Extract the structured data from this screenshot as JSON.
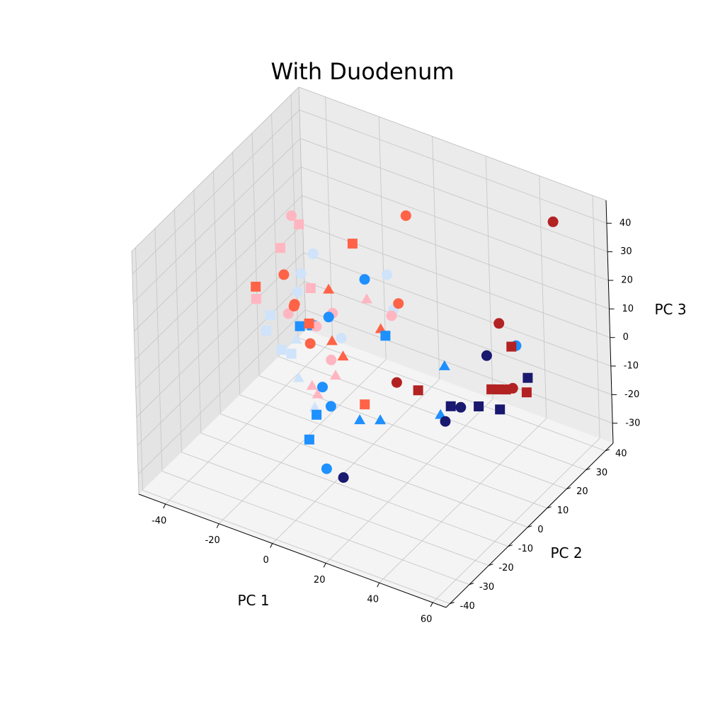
{
  "chart_data": {
    "type": "scatter",
    "projection": "3d",
    "title": "With Duodenum",
    "xlabel": "PC 1",
    "ylabel": "PC 2",
    "zlabel": "PC 3",
    "xlim": [
      -50,
      65
    ],
    "ylim": [
      -42,
      44
    ],
    "zlim": [
      -37,
      48
    ],
    "x_ticks": [
      -40,
      -20,
      0,
      20,
      40,
      60
    ],
    "y_ticks": [
      -40,
      -30,
      -20,
      -10,
      0,
      10,
      20,
      30,
      40
    ],
    "z_ticks": [
      -30,
      -20,
      -10,
      0,
      10,
      20,
      30,
      40
    ],
    "grid": true,
    "colors": {
      "pane_back": "#ebebeb",
      "pane_side": "#e4e4e4",
      "pane_floor": "#f4f4f4",
      "grid": "#c8c8c8",
      "edge": "#999999"
    },
    "marker_colors": {
      "navy": "#191970",
      "dodgerblue": "#1e90ff",
      "lightblue": "#cfe3fa",
      "firebrick": "#b22222",
      "tomato": "#ff6347",
      "pink": "#ffb6c1"
    },
    "points": [
      {
        "x": 5.5,
        "y": -21,
        "z": -23,
        "marker": "o",
        "color": "dodgerblue"
      },
      {
        "x": 12.5,
        "y": -22,
        "z": -23,
        "marker": "o",
        "color": "navy"
      },
      {
        "x": -18,
        "y": 5,
        "z": -27,
        "marker": "^",
        "color": "lightblue"
      },
      {
        "x": 32,
        "y": 4,
        "z": -14,
        "marker": "o",
        "color": "navy"
      },
      {
        "x": 35,
        "y": 3,
        "z": -7,
        "marker": "s",
        "color": "navy"
      },
      {
        "x": 38,
        "y": 4,
        "z": -7,
        "marker": "o",
        "color": "navy"
      },
      {
        "x": 41,
        "y": 9,
        "z": -9,
        "marker": "s",
        "color": "navy"
      },
      {
        "x": 46,
        "y": 13,
        "z": -11,
        "marker": "s",
        "color": "navy"
      },
      {
        "x": 44,
        "y": 30,
        "z": -12,
        "marker": "s",
        "color": "navy"
      },
      {
        "x": 48,
        "y": 17,
        "z": 9,
        "marker": "s",
        "color": "firebrick"
      },
      {
        "x": 49,
        "y": 18,
        "z": 9,
        "marker": "o",
        "color": "dodgerblue"
      },
      {
        "x": 34,
        "y": 23,
        "z": -3,
        "marker": "o",
        "color": "navy"
      },
      {
        "x": 42,
        "y": 25,
        "z": -13,
        "marker": "o",
        "color": "firebrick"
      },
      {
        "x": 39,
        "y": 23,
        "z": 10,
        "marker": "o",
        "color": "firebrick"
      },
      {
        "x": 43,
        "y": 13,
        "z": -5,
        "marker": "s",
        "color": "firebrick"
      },
      {
        "x": 45,
        "y": 14,
        "z": -5,
        "marker": "s",
        "color": "firebrick"
      },
      {
        "x": 47,
        "y": 15,
        "z": -5,
        "marker": "s",
        "color": "firebrick"
      },
      {
        "x": 51,
        "y": 20,
        "z": -8,
        "marker": "s",
        "color": "firebrick"
      },
      {
        "x": 50,
        "y": 37,
        "z": 40,
        "marker": "o",
        "color": "firebrick"
      },
      {
        "x": 8,
        "y": 12,
        "z": -14,
        "marker": "o",
        "color": "firebrick"
      },
      {
        "x": 16,
        "y": 12,
        "z": -14,
        "marker": "s",
        "color": "firebrick"
      },
      {
        "x": 14,
        "y": -15,
        "z": -7,
        "marker": "^",
        "color": "dodgerblue"
      },
      {
        "x": 18,
        "y": -10,
        "z": -9,
        "marker": "^",
        "color": "dodgerblue"
      },
      {
        "x": 28,
        "y": 7,
        "z": -15,
        "marker": "^",
        "color": "dodgerblue"
      },
      {
        "x": 27,
        "y": 11,
        "z": -1,
        "marker": "^",
        "color": "dodgerblue"
      },
      {
        "x": -2,
        "y": -12,
        "z": -3,
        "marker": "o",
        "color": "dodgerblue"
      },
      {
        "x": 0,
        "y": -18,
        "z": -8,
        "marker": "s",
        "color": "dodgerblue"
      },
      {
        "x": 0,
        "y": -22,
        "z": -14,
        "marker": "s",
        "color": "dodgerblue"
      },
      {
        "x": 4,
        "y": -16,
        "z": -5,
        "marker": "o",
        "color": "dodgerblue"
      },
      {
        "x": -14,
        "y": 8,
        "z": 4,
        "marker": "o",
        "color": "dodgerblue"
      },
      {
        "x": -22,
        "y": 10,
        "z": -3,
        "marker": "s",
        "color": "dodgerblue"
      },
      {
        "x": -25,
        "y": 8,
        "z": -3,
        "marker": "s",
        "color": "dodgerblue"
      },
      {
        "x": 0,
        "y": 8,
        "z": 22,
        "marker": "o",
        "color": "dodgerblue"
      },
      {
        "x": 5,
        "y": 11,
        "z": 2,
        "marker": "s",
        "color": "dodgerblue"
      },
      {
        "x": -30,
        "y": 5,
        "z": -11,
        "marker": "s",
        "color": "lightblue"
      },
      {
        "x": -27,
        "y": 6,
        "z": -12,
        "marker": "s",
        "color": "lightblue"
      },
      {
        "x": -36,
        "y": 8,
        "z": -3,
        "marker": "s",
        "color": "lightblue"
      },
      {
        "x": -37,
        "y": 7,
        "z": -8,
        "marker": "s",
        "color": "lightblue"
      },
      {
        "x": -28,
        "y": 10,
        "z": -10,
        "marker": "^",
        "color": "lightblue"
      },
      {
        "x": -20,
        "y": 0,
        "z": -14,
        "marker": "^",
        "color": "lightblue"
      },
      {
        "x": -8,
        "y": 6,
        "z": 0,
        "marker": "o",
        "color": "lightblue"
      },
      {
        "x": 0,
        "y": 22,
        "z": 2,
        "marker": "o",
        "color": "lightblue"
      },
      {
        "x": 4,
        "y": 14,
        "z": 21,
        "marker": "o",
        "color": "lightblue"
      },
      {
        "x": -26,
        "y": 17,
        "z": 16,
        "marker": "o",
        "color": "lightblue"
      },
      {
        "x": -27,
        "y": 12,
        "z": 12,
        "marker": "o",
        "color": "lightblue"
      },
      {
        "x": -27,
        "y": 10,
        "z": 7,
        "marker": "o",
        "color": "lightblue"
      },
      {
        "x": -42,
        "y": 9,
        "z": 0,
        "marker": "s",
        "color": "pink"
      },
      {
        "x": -30,
        "y": 6,
        "z": 24,
        "marker": "s",
        "color": "pink"
      },
      {
        "x": -25,
        "y": 9,
        "z": 32,
        "marker": "s",
        "color": "pink"
      },
      {
        "x": -27,
        "y": 8,
        "z": 35,
        "marker": "o",
        "color": "pink"
      },
      {
        "x": -22,
        "y": 10,
        "z": 10,
        "marker": "s",
        "color": "pink"
      },
      {
        "x": -30,
        "y": 9,
        "z": -1,
        "marker": "o",
        "color": "pink"
      },
      {
        "x": -18,
        "y": 7,
        "z": 0,
        "marker": "o",
        "color": "pink"
      },
      {
        "x": -12,
        "y": 6,
        "z": -9,
        "marker": "o",
        "color": "pink"
      },
      {
        "x": -14,
        "y": 10,
        "z": 4,
        "marker": "o",
        "color": "pink"
      },
      {
        "x": -7,
        "y": 18,
        "z": 6,
        "marker": "^",
        "color": "pink"
      },
      {
        "x": 6,
        "y": 13,
        "z": 8,
        "marker": "o",
        "color": "pink"
      },
      {
        "x": -15,
        "y": 0,
        "z": -15,
        "marker": "^",
        "color": "pink"
      },
      {
        "x": -16,
        "y": 4,
        "z": -21,
        "marker": "^",
        "color": "pink"
      },
      {
        "x": -9,
        "y": 4,
        "z": -12,
        "marker": "^",
        "color": "pink"
      },
      {
        "x": -39,
        "y": 5,
        "z": 8,
        "marker": "s",
        "color": "tomato"
      },
      {
        "x": -29,
        "y": 6,
        "z": 15,
        "marker": "o",
        "color": "tomato"
      },
      {
        "x": -26,
        "y": 7,
        "z": 5,
        "marker": "o",
        "color": "tomato"
      },
      {
        "x": -24,
        "y": 4,
        "z": 7,
        "marker": "o",
        "color": "tomato"
      },
      {
        "x": -20,
        "y": 6,
        "z": 1,
        "marker": "s",
        "color": "tomato"
      },
      {
        "x": -19,
        "y": 5,
        "z": -5,
        "marker": "o",
        "color": "tomato"
      },
      {
        "x": -16,
        "y": 11,
        "z": 11,
        "marker": "^",
        "color": "tomato"
      },
      {
        "x": -13,
        "y": 8,
        "z": -4,
        "marker": "^",
        "color": "tomato"
      },
      {
        "x": -9,
        "y": 8,
        "z": -8,
        "marker": "^",
        "color": "tomato"
      },
      {
        "x": -14,
        "y": 21,
        "z": 21,
        "marker": "s",
        "color": "tomato"
      },
      {
        "x": 1,
        "y": 14,
        "z": 1,
        "marker": "^",
        "color": "tomato"
      },
      {
        "x": 5,
        "y": 23,
        "z": 36,
        "marker": "o",
        "color": "tomato"
      },
      {
        "x": 11,
        "y": 10,
        "z": 16,
        "marker": "o",
        "color": "tomato"
      },
      {
        "x": 7,
        "y": -3,
        "z": -12,
        "marker": "s",
        "color": "tomato"
      }
    ]
  }
}
